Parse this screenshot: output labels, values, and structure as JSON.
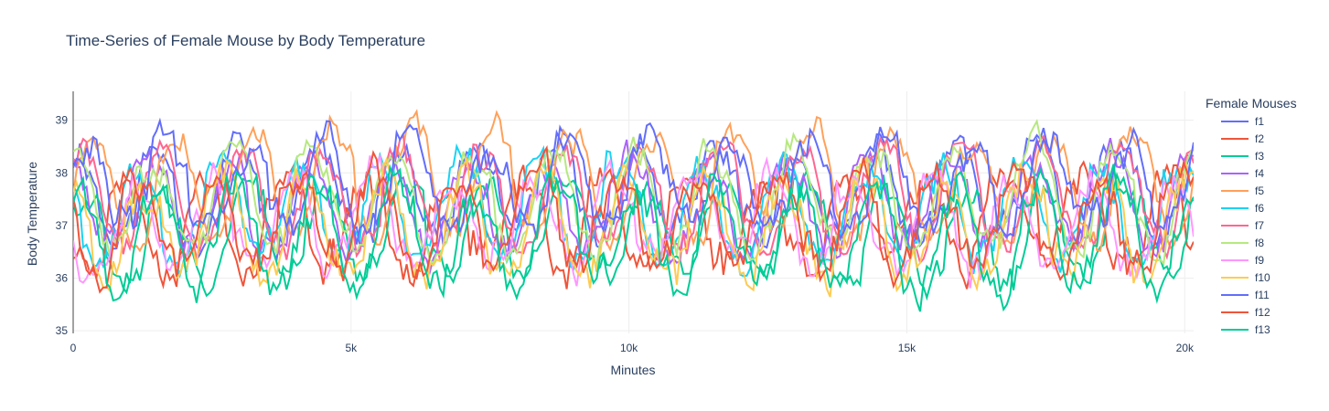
{
  "chart_data": {
    "type": "line",
    "title": "Time-Series of Female Mouse by Body Temperature",
    "xlabel": "Minutes",
    "ylabel": "Body Temperature",
    "xlim": [
      0,
      20160
    ],
    "ylim": [
      34.95,
      39.55
    ],
    "x_ticks": [
      0,
      5000,
      10000,
      15000,
      20000
    ],
    "x_tick_labels": [
      "0",
      "5k",
      "10k",
      "15k",
      "20k"
    ],
    "y_ticks": [
      35,
      36,
      37,
      38,
      39
    ],
    "y_tick_labels": [
      "35",
      "36",
      "37",
      "38",
      "39"
    ],
    "grid": true,
    "legend_title": "Female Mouses",
    "legend_position": "right",
    "sample_step": 60,
    "series": [
      {
        "name": "f1",
        "color": "#636efa",
        "base": 37.6,
        "amp": 0.85,
        "phase": 0.2,
        "noise": 0.45,
        "seed": 11
      },
      {
        "name": "f2",
        "color": "#EF553B",
        "base": 37.1,
        "amp": 0.75,
        "phase": 0.6,
        "noise": 0.5,
        "seed": 23
      },
      {
        "name": "f3",
        "color": "#00cc96",
        "base": 36.9,
        "amp": 0.8,
        "phase": 0.1,
        "noise": 0.45,
        "seed": 37
      },
      {
        "name": "f4",
        "color": "#ab63fa",
        "base": 37.4,
        "amp": 0.8,
        "phase": 0.3,
        "noise": 0.45,
        "seed": 41
      },
      {
        "name": "f5",
        "color": "#FFA15A",
        "base": 37.8,
        "amp": 0.95,
        "phase": 0.0,
        "noise": 0.4,
        "seed": 53
      },
      {
        "name": "f6",
        "color": "#19d3f3",
        "base": 37.3,
        "amp": 0.85,
        "phase": 0.4,
        "noise": 0.45,
        "seed": 67
      },
      {
        "name": "f7",
        "color": "#FF6692",
        "base": 37.5,
        "amp": 0.9,
        "phase": 0.15,
        "noise": 0.4,
        "seed": 71
      },
      {
        "name": "f8",
        "color": "#B6E880",
        "base": 37.5,
        "amp": 0.9,
        "phase": 0.25,
        "noise": 0.4,
        "seed": 83
      },
      {
        "name": "f9",
        "color": "#FF97FF",
        "base": 37.0,
        "amp": 0.8,
        "phase": 0.5,
        "noise": 0.5,
        "seed": 97
      },
      {
        "name": "f10",
        "color": "#FECB52",
        "base": 37.0,
        "amp": 0.9,
        "phase": 0.35,
        "noise": 0.55,
        "seed": 101
      },
      {
        "name": "f11",
        "color": "#636efa",
        "base": 37.8,
        "amp": 0.8,
        "phase": 0.05,
        "noise": 0.5,
        "seed": 113
      },
      {
        "name": "f12",
        "color": "#EF553B",
        "base": 37.1,
        "amp": 0.85,
        "phase": 0.45,
        "noise": 0.5,
        "seed": 127
      },
      {
        "name": "f13",
        "color": "#00cc96",
        "base": 36.8,
        "amp": 0.9,
        "phase": 0.2,
        "noise": 0.5,
        "seed": 131
      }
    ]
  }
}
